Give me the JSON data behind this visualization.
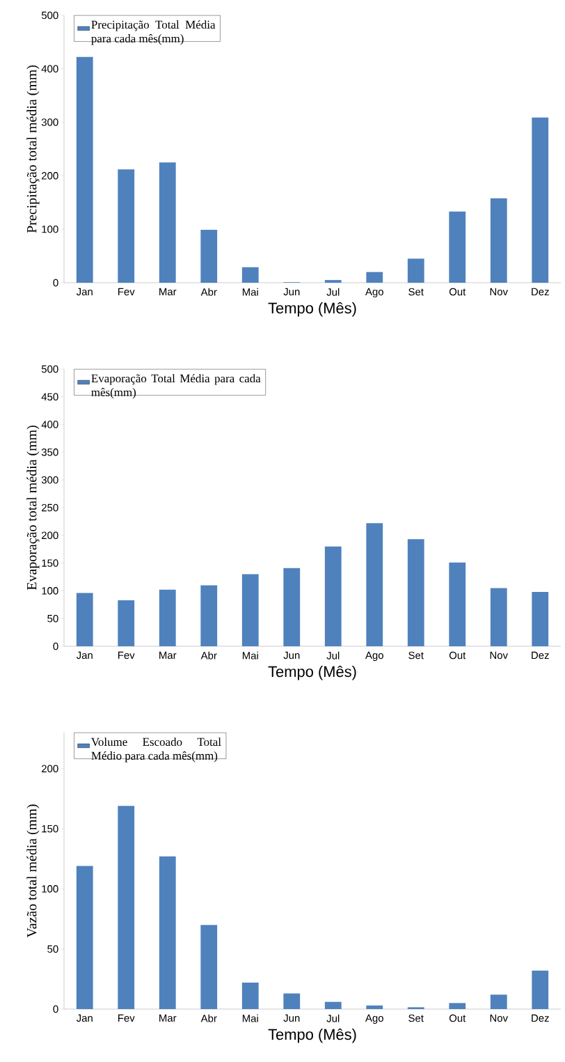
{
  "chart_data": [
    {
      "type": "bar",
      "xlabel": "Tempo (Mês)",
      "ylabel": "Precipitação total média (mm)",
      "categories": [
        "Jan",
        "Fev",
        "Mar",
        "Abr",
        "Mai",
        "Jun",
        "Jul",
        "Ago",
        "Set",
        "Out",
        "Nov",
        "Dez"
      ],
      "series": [
        {
          "name": "Precipitação  Total Média para cada mês(mm)",
          "color": "#4f81bd",
          "values": [
            422,
            212,
            225,
            99,
            29,
            1,
            5,
            20,
            45,
            133,
            158,
            309
          ]
        }
      ],
      "ylim": [
        0,
        500
      ],
      "yticks": [
        0,
        100,
        200,
        300,
        400,
        500
      ],
      "legend": "top left"
    },
    {
      "type": "bar",
      "xlabel": "Tempo (Mês)",
      "ylabel": "Evaporação total média (mm)",
      "categories": [
        "Jan",
        "Fev",
        "Mar",
        "Abr",
        "Mai",
        "Jun",
        "Jul",
        "Ago",
        "Set",
        "Out",
        "Nov",
        "Dez"
      ],
      "series": [
        {
          "name": "Evaporação Total Média para cada mês(mm)",
          "color": "#4f81bd",
          "values": [
            96,
            83,
            102,
            110,
            130,
            141,
            180,
            222,
            193,
            151,
            105,
            98
          ]
        }
      ],
      "ylim": [
        0,
        500
      ],
      "yticks": [
        0,
        50,
        100,
        150,
        200,
        250,
        300,
        350,
        400,
        450,
        500
      ],
      "legend": "top left"
    },
    {
      "type": "bar",
      "xlabel": "Tempo (Mês)",
      "ylabel": "Vazão total média (mm)",
      "categories": [
        "Jan",
        "Fev",
        "Mar",
        "Abr",
        "Mai",
        "Jun",
        "Jul",
        "Ago",
        "Set",
        "Out",
        "Nov",
        "Dez"
      ],
      "series": [
        {
          "name": "Volume Escoado Total Médio para cada mês(mm)",
          "color": "#4f81bd",
          "values": [
            119,
            169,
            127,
            70,
            22,
            13,
            6,
            3,
            1.5,
            5,
            12,
            32
          ]
        }
      ],
      "ylim": [
        0,
        230
      ],
      "yticks": [
        0,
        50,
        100,
        150,
        200
      ],
      "legend": "top left"
    }
  ]
}
